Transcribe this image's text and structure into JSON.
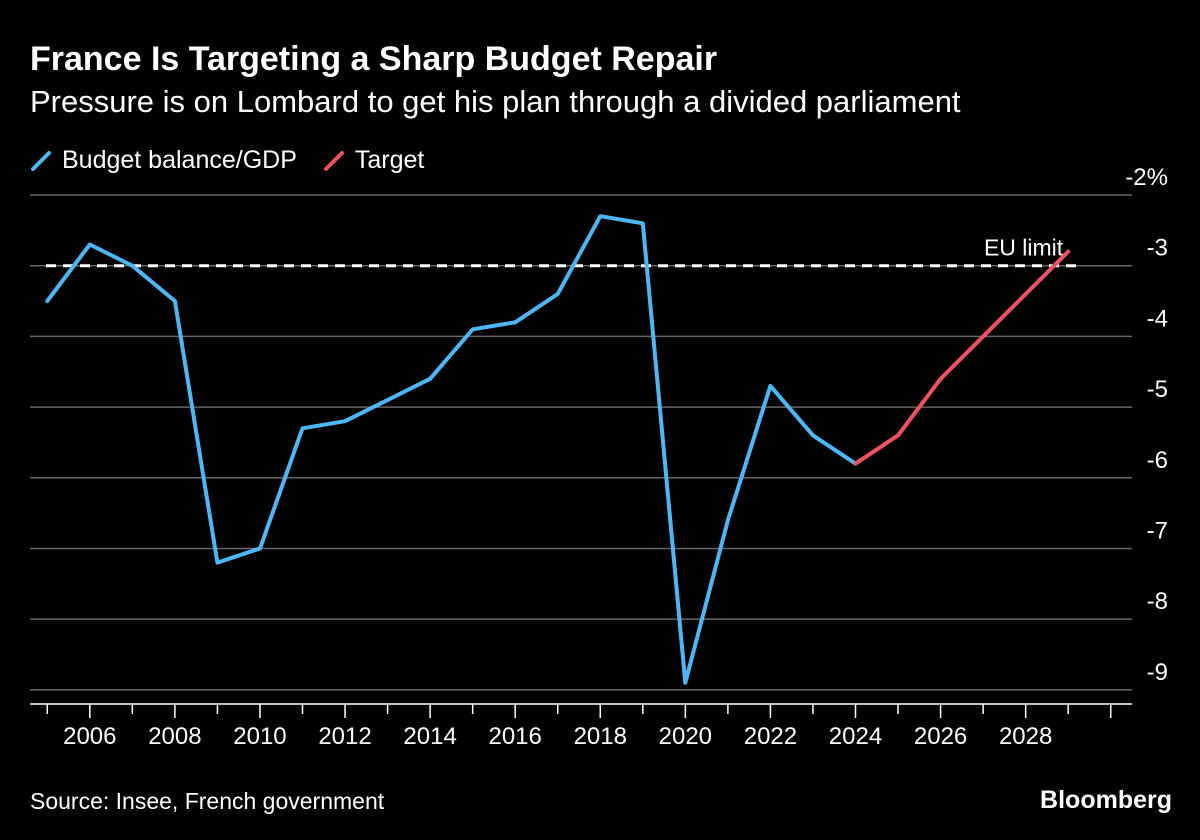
{
  "header": {
    "title": "France Is Targeting a Sharp Budget Repair",
    "subtitle": "Pressure is on Lombard to get his plan through a divided parliament"
  },
  "legend": {
    "items": [
      {
        "label": "Budget balance/GDP",
        "color": "#4db7f5"
      },
      {
        "label": "Target",
        "color": "#f0535f"
      }
    ]
  },
  "footer": {
    "source": "Source: Insee, French government",
    "brand": "Bloomberg"
  },
  "colors": {
    "background": "#000000",
    "gridline": "#666666",
    "reference_line": "#ffffff"
  },
  "chart_data": {
    "type": "line",
    "title": "France Is Targeting a Sharp Budget Repair",
    "subtitle": "Pressure is on Lombard to get his plan through a divided parliament",
    "xlabel": "",
    "ylabel": "",
    "xlim": [
      2004.5,
      2030.5
    ],
    "ylim": [
      -9.2,
      -2
    ],
    "y_ticks": [
      -2,
      -3,
      -4,
      -5,
      -6,
      -7,
      -8,
      -9
    ],
    "y_tick_labels": [
      "-2%",
      "-3",
      "-4",
      "-5",
      "-6",
      "-7",
      "-8",
      "-9"
    ],
    "x_ticks": [
      2006,
      2008,
      2010,
      2012,
      2014,
      2016,
      2018,
      2020,
      2022,
      2024,
      2026,
      2028
    ],
    "x_tick_labels": [
      "2006",
      "2008",
      "2010",
      "2012",
      "2014",
      "2016",
      "2018",
      "2020",
      "2022",
      "2024",
      "2026",
      "2028"
    ],
    "grid": "horizontal",
    "y_axis_position": "right",
    "legend_position": "top-left",
    "series": [
      {
        "name": "Budget balance/GDP",
        "color": "#4db7f5",
        "x": [
          2005,
          2006,
          2007,
          2008,
          2009,
          2010,
          2011,
          2012,
          2013,
          2014,
          2015,
          2016,
          2017,
          2018,
          2019,
          2020,
          2021,
          2022,
          2023,
          2024
        ],
        "y": [
          -3.5,
          -2.7,
          -3.0,
          -3.5,
          -7.2,
          -7.0,
          -5.3,
          -5.2,
          -4.9,
          -4.6,
          -3.9,
          -3.8,
          -3.4,
          -2.3,
          -2.4,
          -8.9,
          -6.6,
          -4.7,
          -5.4,
          -5.8
        ]
      },
      {
        "name": "Target",
        "color": "#f0535f",
        "x": [
          2024,
          2025,
          2026,
          2027,
          2028,
          2029
        ],
        "y": [
          -5.8,
          -5.4,
          -4.6,
          -4.0,
          -3.4,
          -2.8
        ]
      }
    ],
    "reference_lines": [
      {
        "label": "EU limit",
        "y": -3,
        "style": "dashed",
        "color": "#ffffff"
      }
    ]
  }
}
